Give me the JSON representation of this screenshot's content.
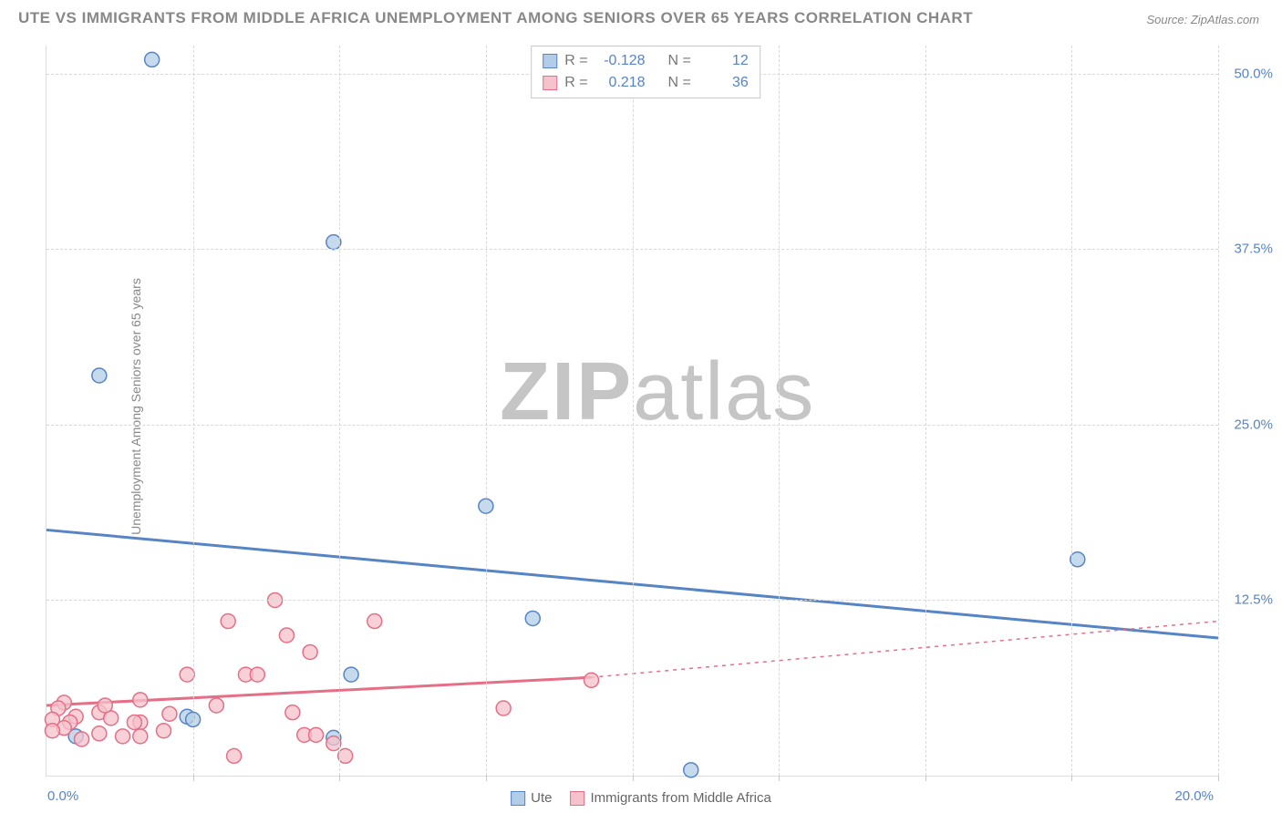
{
  "title": "UTE VS IMMIGRANTS FROM MIDDLE AFRICA UNEMPLOYMENT AMONG SENIORS OVER 65 YEARS CORRELATION CHART",
  "source_label": "Source: ZipAtlas.com",
  "watermark_a": "ZIP",
  "watermark_b": "atlas",
  "chart": {
    "type": "scatter",
    "y_axis_label": "Unemployment Among Seniors over 65 years",
    "xlim": [
      0,
      20
    ],
    "ylim": [
      0,
      52
    ],
    "x_tick_min_label": "0.0%",
    "x_tick_max_label": "20.0%",
    "y_ticks": [
      {
        "v": 12.5,
        "label": "12.5%"
      },
      {
        "v": 25.0,
        "label": "25.0%"
      },
      {
        "v": 37.5,
        "label": "37.5%"
      },
      {
        "v": 50.0,
        "label": "50.0%"
      }
    ],
    "x_tick_minor": [
      0,
      2.5,
      5.0,
      7.5,
      10.0,
      12.5,
      15.0,
      17.5,
      20.0
    ],
    "grid_color": "#d8d8d8",
    "background_color": "#ffffff",
    "series": [
      {
        "name": "Ute",
        "key": "ute",
        "fill": "#b3cde8",
        "stroke": "#5684c4",
        "line_color": "#5684c4",
        "line_width": 3,
        "line_dash": "none",
        "marker_r": 8,
        "R": "-0.128",
        "N": "12",
        "trend": {
          "x1": 0,
          "y1": 17.5,
          "x2": 20,
          "y2": 9.8
        },
        "trend_extend": null,
        "points": [
          {
            "x": 1.8,
            "y": 51.0
          },
          {
            "x": 4.9,
            "y": 38.0
          },
          {
            "x": 0.9,
            "y": 28.5
          },
          {
            "x": 7.5,
            "y": 19.2
          },
          {
            "x": 17.6,
            "y": 15.4
          },
          {
            "x": 8.3,
            "y": 11.2
          },
          {
            "x": 5.2,
            "y": 7.2
          },
          {
            "x": 2.4,
            "y": 4.2
          },
          {
            "x": 2.5,
            "y": 4.0
          },
          {
            "x": 0.5,
            "y": 2.8
          },
          {
            "x": 11.0,
            "y": 0.4
          },
          {
            "x": 4.9,
            "y": 2.7
          }
        ]
      },
      {
        "name": "Immigrants from Middle Africa",
        "key": "immigrants",
        "fill": "#f6c2cb",
        "stroke": "#e46f87",
        "line_color": "#e46f87",
        "line_width": 3,
        "line_dash": "none",
        "marker_r": 8,
        "R": "0.218",
        "N": "36",
        "trend": {
          "x1": 0,
          "y1": 5.0,
          "x2": 9.3,
          "y2": 7.0
        },
        "trend_extend": {
          "x1": 9.3,
          "y1": 7.0,
          "x2": 20,
          "y2": 11.0,
          "dash": "4,5"
        },
        "points": [
          {
            "x": 3.9,
            "y": 12.5
          },
          {
            "x": 3.1,
            "y": 11.0
          },
          {
            "x": 4.1,
            "y": 10.0
          },
          {
            "x": 5.6,
            "y": 11.0
          },
          {
            "x": 4.5,
            "y": 8.8
          },
          {
            "x": 3.4,
            "y": 7.2
          },
          {
            "x": 3.6,
            "y": 7.2
          },
          {
            "x": 2.4,
            "y": 7.2
          },
          {
            "x": 9.3,
            "y": 6.8
          },
          {
            "x": 7.8,
            "y": 4.8
          },
          {
            "x": 4.2,
            "y": 4.5
          },
          {
            "x": 1.6,
            "y": 3.8
          },
          {
            "x": 0.3,
            "y": 5.2
          },
          {
            "x": 0.5,
            "y": 4.2
          },
          {
            "x": 0.2,
            "y": 4.8
          },
          {
            "x": 0.4,
            "y": 3.8
          },
          {
            "x": 0.9,
            "y": 4.5
          },
          {
            "x": 0.9,
            "y": 3.0
          },
          {
            "x": 1.1,
            "y": 4.1
          },
          {
            "x": 1.3,
            "y": 2.8
          },
          {
            "x": 1.6,
            "y": 2.8
          },
          {
            "x": 1.5,
            "y": 3.8
          },
          {
            "x": 2.0,
            "y": 3.2
          },
          {
            "x": 1.0,
            "y": 5.0
          },
          {
            "x": 1.6,
            "y": 5.4
          },
          {
            "x": 2.1,
            "y": 4.4
          },
          {
            "x": 0.1,
            "y": 4.0
          },
          {
            "x": 0.3,
            "y": 3.4
          },
          {
            "x": 0.1,
            "y": 3.2
          },
          {
            "x": 2.9,
            "y": 5.0
          },
          {
            "x": 3.2,
            "y": 1.4
          },
          {
            "x": 4.4,
            "y": 2.9
          },
          {
            "x": 4.6,
            "y": 2.9
          },
          {
            "x": 4.9,
            "y": 2.3
          },
          {
            "x": 5.1,
            "y": 1.4
          },
          {
            "x": 0.6,
            "y": 2.6
          }
        ]
      }
    ],
    "legend": {
      "series1_label": "Ute",
      "series2_label": "Immigrants from Middle Africa"
    },
    "stats_labels": {
      "r": "R =",
      "n": "N ="
    }
  }
}
